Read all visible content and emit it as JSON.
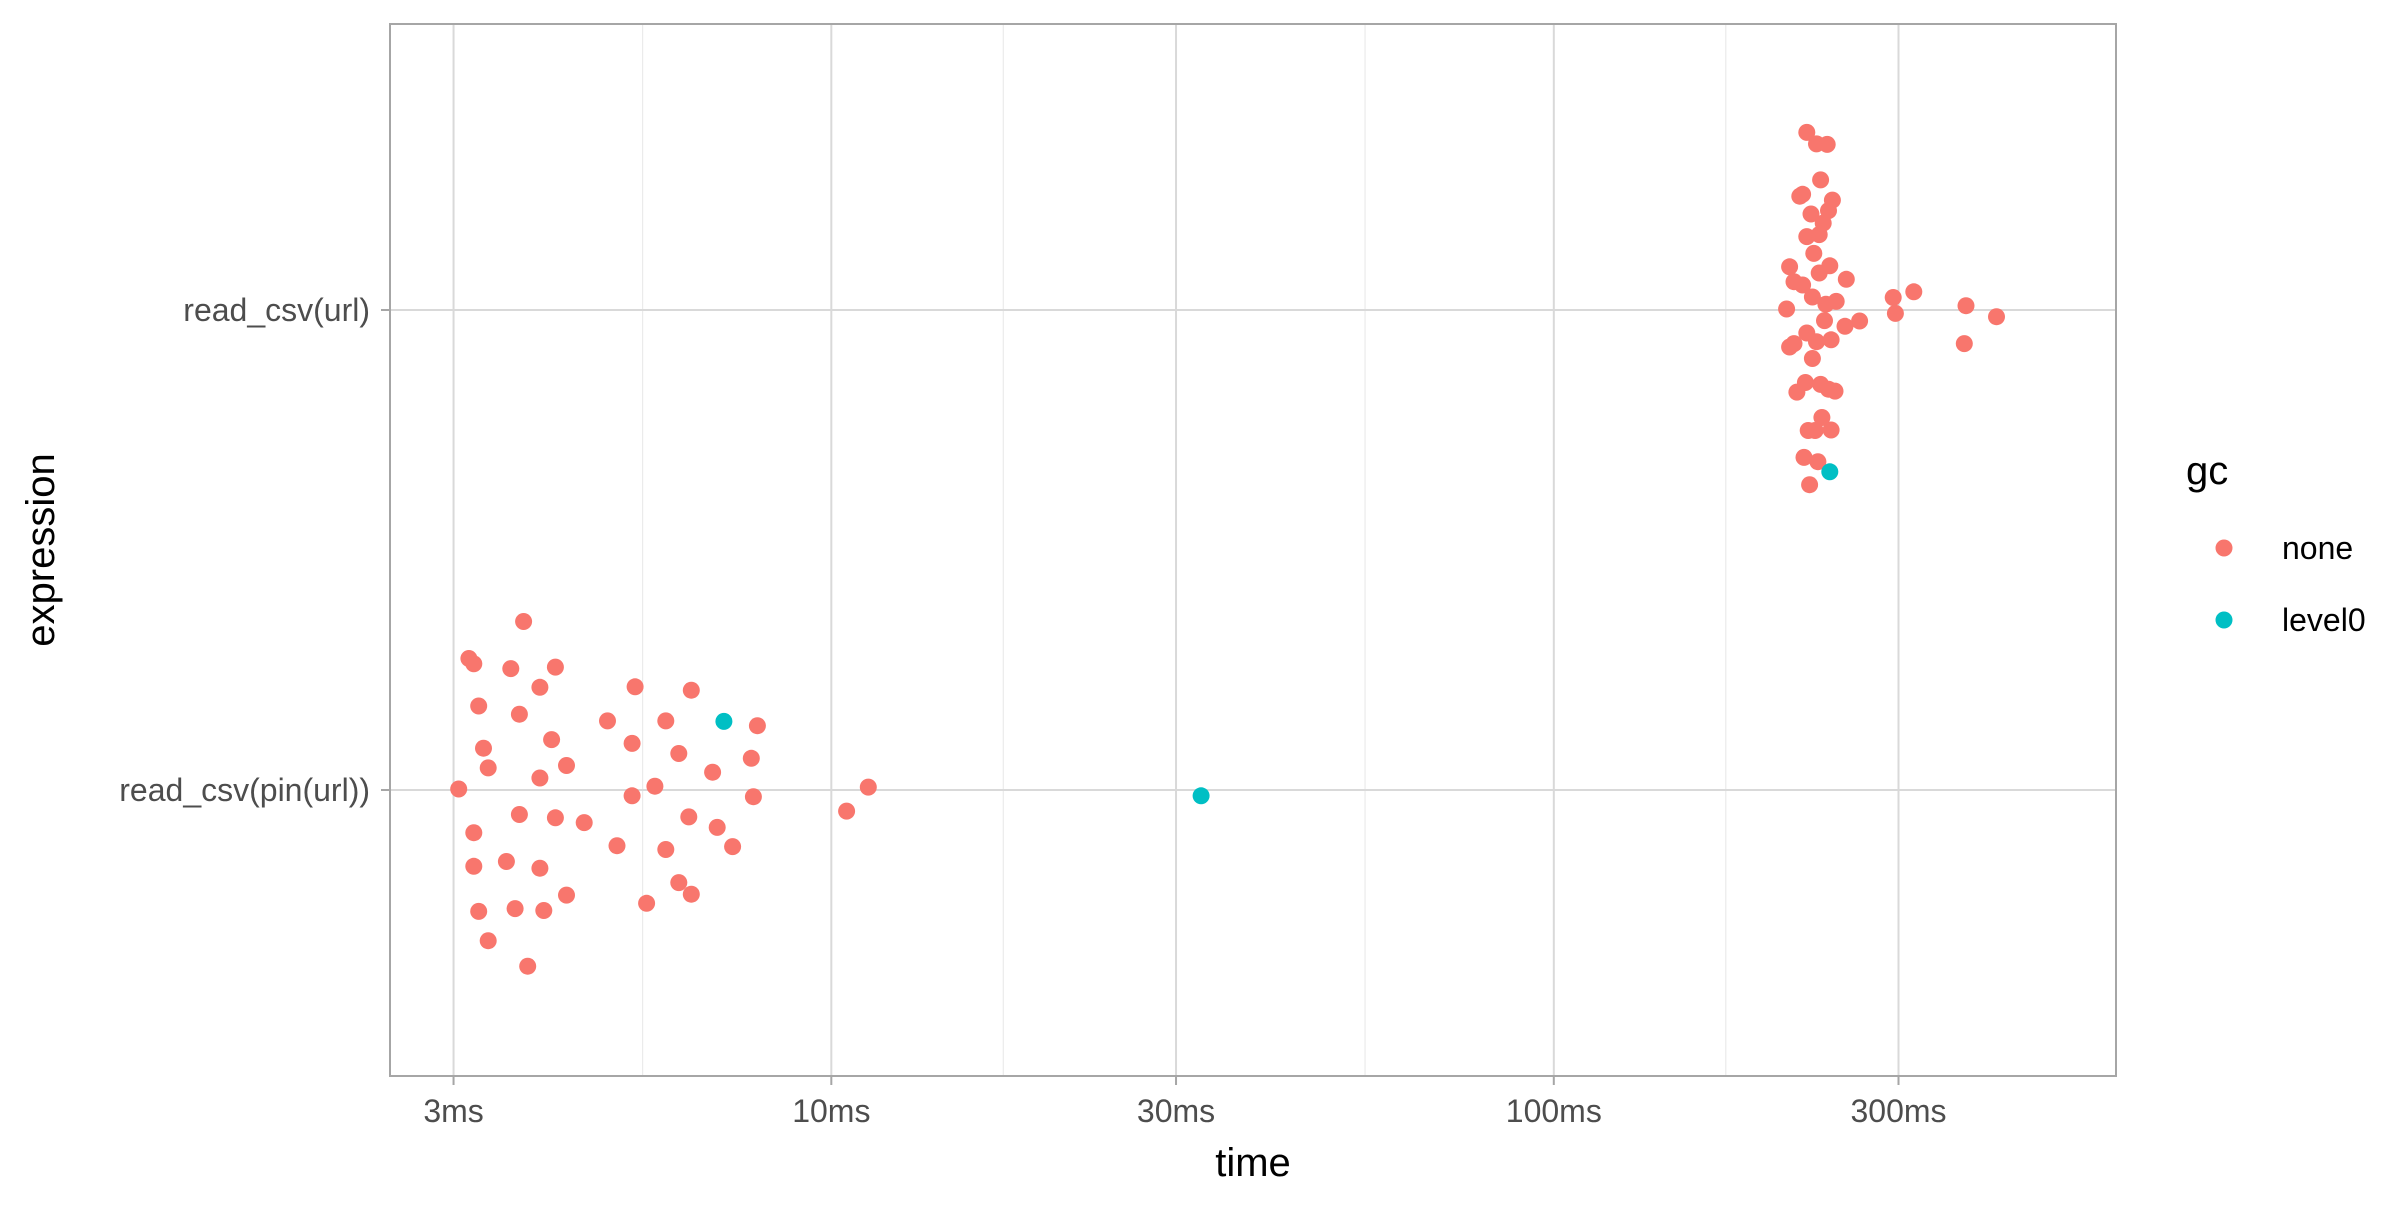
{
  "chart_data": {
    "type": "scatter",
    "xlabel": "time",
    "ylabel": "expression",
    "x_scale": "log10",
    "x_units": "ms",
    "xlim": [
      2.45,
      600
    ],
    "x_ticks": [
      {
        "value": 3,
        "label": "3ms"
      },
      {
        "value": 10,
        "label": "10ms"
      },
      {
        "value": 30,
        "label": "30ms"
      },
      {
        "value": 100,
        "label": "100ms"
      },
      {
        "value": 300,
        "label": "300ms"
      }
    ],
    "x_minor_ticks": [
      5.48,
      17.3,
      54.8,
      173
    ],
    "categories": [
      "read_csv(pin(url))",
      "read_csv(url)"
    ],
    "grid": true,
    "legend": {
      "title": "gc",
      "position": "right",
      "entries": [
        {
          "name": "none",
          "color": "#F8766D"
        },
        {
          "name": "level0",
          "color": "#00BFC4"
        }
      ]
    },
    "series": [
      {
        "name": "none",
        "color": "#F8766D",
        "points": [
          {
            "category": "read_csv(pin(url))",
            "x": 3.05,
            "offset": 0.002
          },
          {
            "category": "read_csv(pin(url))",
            "x": 3.15,
            "offset": 0.274
          },
          {
            "category": "read_csv(pin(url))",
            "x": 3.2,
            "offset": 0.263
          },
          {
            "category": "read_csv(pin(url))",
            "x": 3.25,
            "offset": 0.175
          },
          {
            "category": "read_csv(pin(url))",
            "x": 3.3,
            "offset": 0.087
          },
          {
            "category": "read_csv(pin(url))",
            "x": 3.35,
            "offset": 0.046
          },
          {
            "category": "read_csv(pin(url))",
            "x": 3.2,
            "offset": -0.089
          },
          {
            "category": "read_csv(pin(url))",
            "x": 3.2,
            "offset": -0.159
          },
          {
            "category": "read_csv(pin(url))",
            "x": 3.25,
            "offset": -0.253
          },
          {
            "category": "read_csv(pin(url))",
            "x": 3.35,
            "offset": -0.314
          },
          {
            "category": "read_csv(pin(url))",
            "x": 3.6,
            "offset": 0.253
          },
          {
            "category": "read_csv(pin(url))",
            "x": 3.55,
            "offset": -0.149
          },
          {
            "category": "read_csv(pin(url))",
            "x": 3.65,
            "offset": -0.247
          },
          {
            "category": "read_csv(pin(url))",
            "x": 3.75,
            "offset": 0.351
          },
          {
            "category": "read_csv(pin(url))",
            "x": 3.7,
            "offset": 0.158
          },
          {
            "category": "read_csv(pin(url))",
            "x": 3.7,
            "offset": -0.051
          },
          {
            "category": "read_csv(pin(url))",
            "x": 3.8,
            "offset": -0.367
          },
          {
            "category": "read_csv(pin(url))",
            "x": 3.95,
            "offset": 0.214
          },
          {
            "category": "read_csv(pin(url))",
            "x": 3.95,
            "offset": 0.025
          },
          {
            "category": "read_csv(pin(url))",
            "x": 3.95,
            "offset": -0.163
          },
          {
            "category": "read_csv(pin(url))",
            "x": 4.0,
            "offset": -0.251
          },
          {
            "category": "read_csv(pin(url))",
            "x": 4.15,
            "offset": 0.256
          },
          {
            "category": "read_csv(pin(url))",
            "x": 4.1,
            "offset": 0.105
          },
          {
            "category": "read_csv(pin(url))",
            "x": 4.15,
            "offset": -0.058
          },
          {
            "category": "read_csv(pin(url))",
            "x": 4.3,
            "offset": 0.051
          },
          {
            "category": "read_csv(pin(url))",
            "x": 4.3,
            "offset": -0.219
          },
          {
            "category": "read_csv(pin(url))",
            "x": 4.55,
            "offset": -0.068
          },
          {
            "category": "read_csv(pin(url))",
            "x": 4.9,
            "offset": 0.144
          },
          {
            "category": "read_csv(pin(url))",
            "x": 5.05,
            "offset": -0.116
          },
          {
            "category": "read_csv(pin(url))",
            "x": 5.3,
            "offset": 0.097
          },
          {
            "category": "read_csv(pin(url))",
            "x": 5.3,
            "offset": -0.012
          },
          {
            "category": "read_csv(pin(url))",
            "x": 5.35,
            "offset": 0.215
          },
          {
            "category": "read_csv(pin(url))",
            "x": 5.55,
            "offset": -0.236
          },
          {
            "category": "read_csv(pin(url))",
            "x": 5.7,
            "offset": 0.008
          },
          {
            "category": "read_csv(pin(url))",
            "x": 5.9,
            "offset": 0.144
          },
          {
            "category": "read_csv(pin(url))",
            "x": 5.9,
            "offset": -0.124
          },
          {
            "category": "read_csv(pin(url))",
            "x": 6.15,
            "offset": 0.076
          },
          {
            "category": "read_csv(pin(url))",
            "x": 6.15,
            "offset": -0.193
          },
          {
            "category": "read_csv(pin(url))",
            "x": 6.35,
            "offset": -0.056
          },
          {
            "category": "read_csv(pin(url))",
            "x": 6.4,
            "offset": 0.208
          },
          {
            "category": "read_csv(pin(url))",
            "x": 6.4,
            "offset": -0.217
          },
          {
            "category": "read_csv(pin(url))",
            "x": 6.85,
            "offset": 0.037
          },
          {
            "category": "read_csv(pin(url))",
            "x": 6.95,
            "offset": -0.078
          },
          {
            "category": "read_csv(pin(url))",
            "x": 7.3,
            "offset": -0.118
          },
          {
            "category": "read_csv(pin(url))",
            "x": 7.75,
            "offset": 0.066
          },
          {
            "category": "read_csv(pin(url))",
            "x": 7.8,
            "offset": -0.014
          },
          {
            "category": "read_csv(pin(url))",
            "x": 7.9,
            "offset": 0.134
          },
          {
            "category": "read_csv(pin(url))",
            "x": 10.5,
            "offset": -0.044
          },
          {
            "category": "read_csv(pin(url))",
            "x": 11.25,
            "offset": 0.006
          },
          {
            "category": "read_csv(url)",
            "x": 210,
            "offset": 0.002
          },
          {
            "category": "read_csv(url)",
            "x": 212,
            "offset": 0.09
          },
          {
            "category": "read_csv(url)",
            "x": 212,
            "offset": -0.077
          },
          {
            "category": "read_csv(url)",
            "x": 215,
            "offset": 0.059
          },
          {
            "category": "read_csv(url)",
            "x": 215,
            "offset": -0.07
          },
          {
            "category": "read_csv(url)",
            "x": 217,
            "offset": -0.171
          },
          {
            "category": "read_csv(url)",
            "x": 219,
            "offset": 0.237
          },
          {
            "category": "read_csv(url)",
            "x": 221,
            "offset": 0.241
          },
          {
            "category": "read_csv(url)",
            "x": 221,
            "offset": 0.052
          },
          {
            "category": "read_csv(url)",
            "x": 222,
            "offset": -0.307
          },
          {
            "category": "read_csv(url)",
            "x": 223,
            "offset": -0.151
          },
          {
            "category": "read_csv(url)",
            "x": 224,
            "offset": 0.37
          },
          {
            "category": "read_csv(url)",
            "x": 224,
            "offset": 0.153
          },
          {
            "category": "read_csv(url)",
            "x": 224,
            "offset": -0.048
          },
          {
            "category": "read_csv(url)",
            "x": 225,
            "offset": -0.251
          },
          {
            "category": "read_csv(url)",
            "x": 226,
            "offset": -0.364
          },
          {
            "category": "read_csv(url)",
            "x": 227,
            "offset": 0.2
          },
          {
            "category": "read_csv(url)",
            "x": 228,
            "offset": 0.027
          },
          {
            "category": "read_csv(url)",
            "x": 228,
            "offset": -0.101
          },
          {
            "category": "read_csv(url)",
            "x": 229,
            "offset": 0.118
          },
          {
            "category": "read_csv(url)",
            "x": 230,
            "offset": -0.251
          },
          {
            "category": "read_csv(url)",
            "x": 231,
            "offset": 0.346
          },
          {
            "category": "read_csv(url)",
            "x": 231,
            "offset": -0.066
          },
          {
            "category": "read_csv(url)",
            "x": 232,
            "offset": -0.316
          },
          {
            "category": "read_csv(url)",
            "x": 233,
            "offset": 0.157
          },
          {
            "category": "read_csv(url)",
            "x": 233,
            "offset": 0.077
          },
          {
            "category": "read_csv(url)",
            "x": 234,
            "offset": 0.271
          },
          {
            "category": "read_csv(url)",
            "x": 234,
            "offset": -0.155
          },
          {
            "category": "read_csv(url)",
            "x": 235,
            "offset": -0.224
          },
          {
            "category": "read_csv(url)",
            "x": 236,
            "offset": 0.181
          },
          {
            "category": "read_csv(url)",
            "x": 237,
            "offset": -0.022
          },
          {
            "category": "read_csv(url)",
            "x": 238,
            "offset": 0.012
          },
          {
            "category": "read_csv(url)",
            "x": 239,
            "offset": 0.345
          },
          {
            "category": "read_csv(url)",
            "x": 240,
            "offset": 0.207
          },
          {
            "category": "read_csv(url)",
            "x": 240,
            "offset": -0.165
          },
          {
            "category": "read_csv(url)",
            "x": 241,
            "offset": 0.092
          },
          {
            "category": "read_csv(url)",
            "x": 242,
            "offset": -0.062
          },
          {
            "category": "read_csv(url)",
            "x": 242,
            "offset": -0.25
          },
          {
            "category": "read_csv(url)",
            "x": 243,
            "offset": 0.229
          },
          {
            "category": "read_csv(url)",
            "x": 245,
            "offset": -0.169
          },
          {
            "category": "read_csv(url)",
            "x": 246,
            "offset": 0.018
          },
          {
            "category": "read_csv(url)",
            "x": 253,
            "offset": -0.034
          },
          {
            "category": "read_csv(url)",
            "x": 254,
            "offset": 0.064
          },
          {
            "category": "read_csv(url)",
            "x": 265,
            "offset": -0.023
          },
          {
            "category": "read_csv(url)",
            "x": 295,
            "offset": 0.026
          },
          {
            "category": "read_csv(url)",
            "x": 297,
            "offset": -0.007
          },
          {
            "category": "read_csv(url)",
            "x": 315,
            "offset": 0.038
          },
          {
            "category": "read_csv(url)",
            "x": 370,
            "offset": -0.07
          },
          {
            "category": "read_csv(url)",
            "x": 372,
            "offset": 0.009
          },
          {
            "category": "read_csv(url)",
            "x": 410,
            "offset": -0.014
          }
        ]
      },
      {
        "name": "level0",
        "color": "#00BFC4",
        "points": [
          {
            "category": "read_csv(pin(url))",
            "x": 7.1,
            "offset": 0.143
          },
          {
            "category": "read_csv(pin(url))",
            "x": 32.5,
            "offset": -0.012
          },
          {
            "category": "read_csv(url)",
            "x": 241,
            "offset": -0.337
          }
        ]
      }
    ]
  }
}
